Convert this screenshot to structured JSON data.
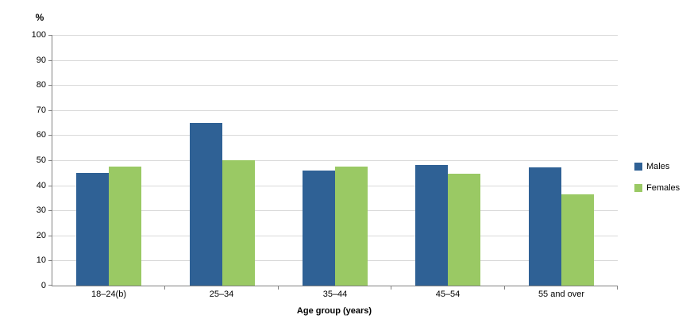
{
  "chart_data": {
    "type": "bar",
    "title": "",
    "categories": [
      "18–24(b)",
      "25–34",
      "35–44",
      "45–54",
      "55 and over"
    ],
    "series": [
      {
        "name": "Males",
        "color": "#2F6195",
        "values": [
          45,
          65,
          46,
          48,
          47
        ]
      },
      {
        "name": "Females",
        "color": "#9AC964",
        "values": [
          47.5,
          50,
          47.5,
          44.5,
          36.5
        ]
      }
    ],
    "xlabel": "Age group (years)",
    "ylabel": "%",
    "ylim": [
      0,
      100
    ],
    "yticks": [
      0,
      10,
      20,
      30,
      40,
      50,
      60,
      70,
      80,
      90,
      100
    ],
    "grid": true,
    "legend_position": "right",
    "axis_color": "#808080",
    "gridline_color": "#d9d9d9"
  }
}
